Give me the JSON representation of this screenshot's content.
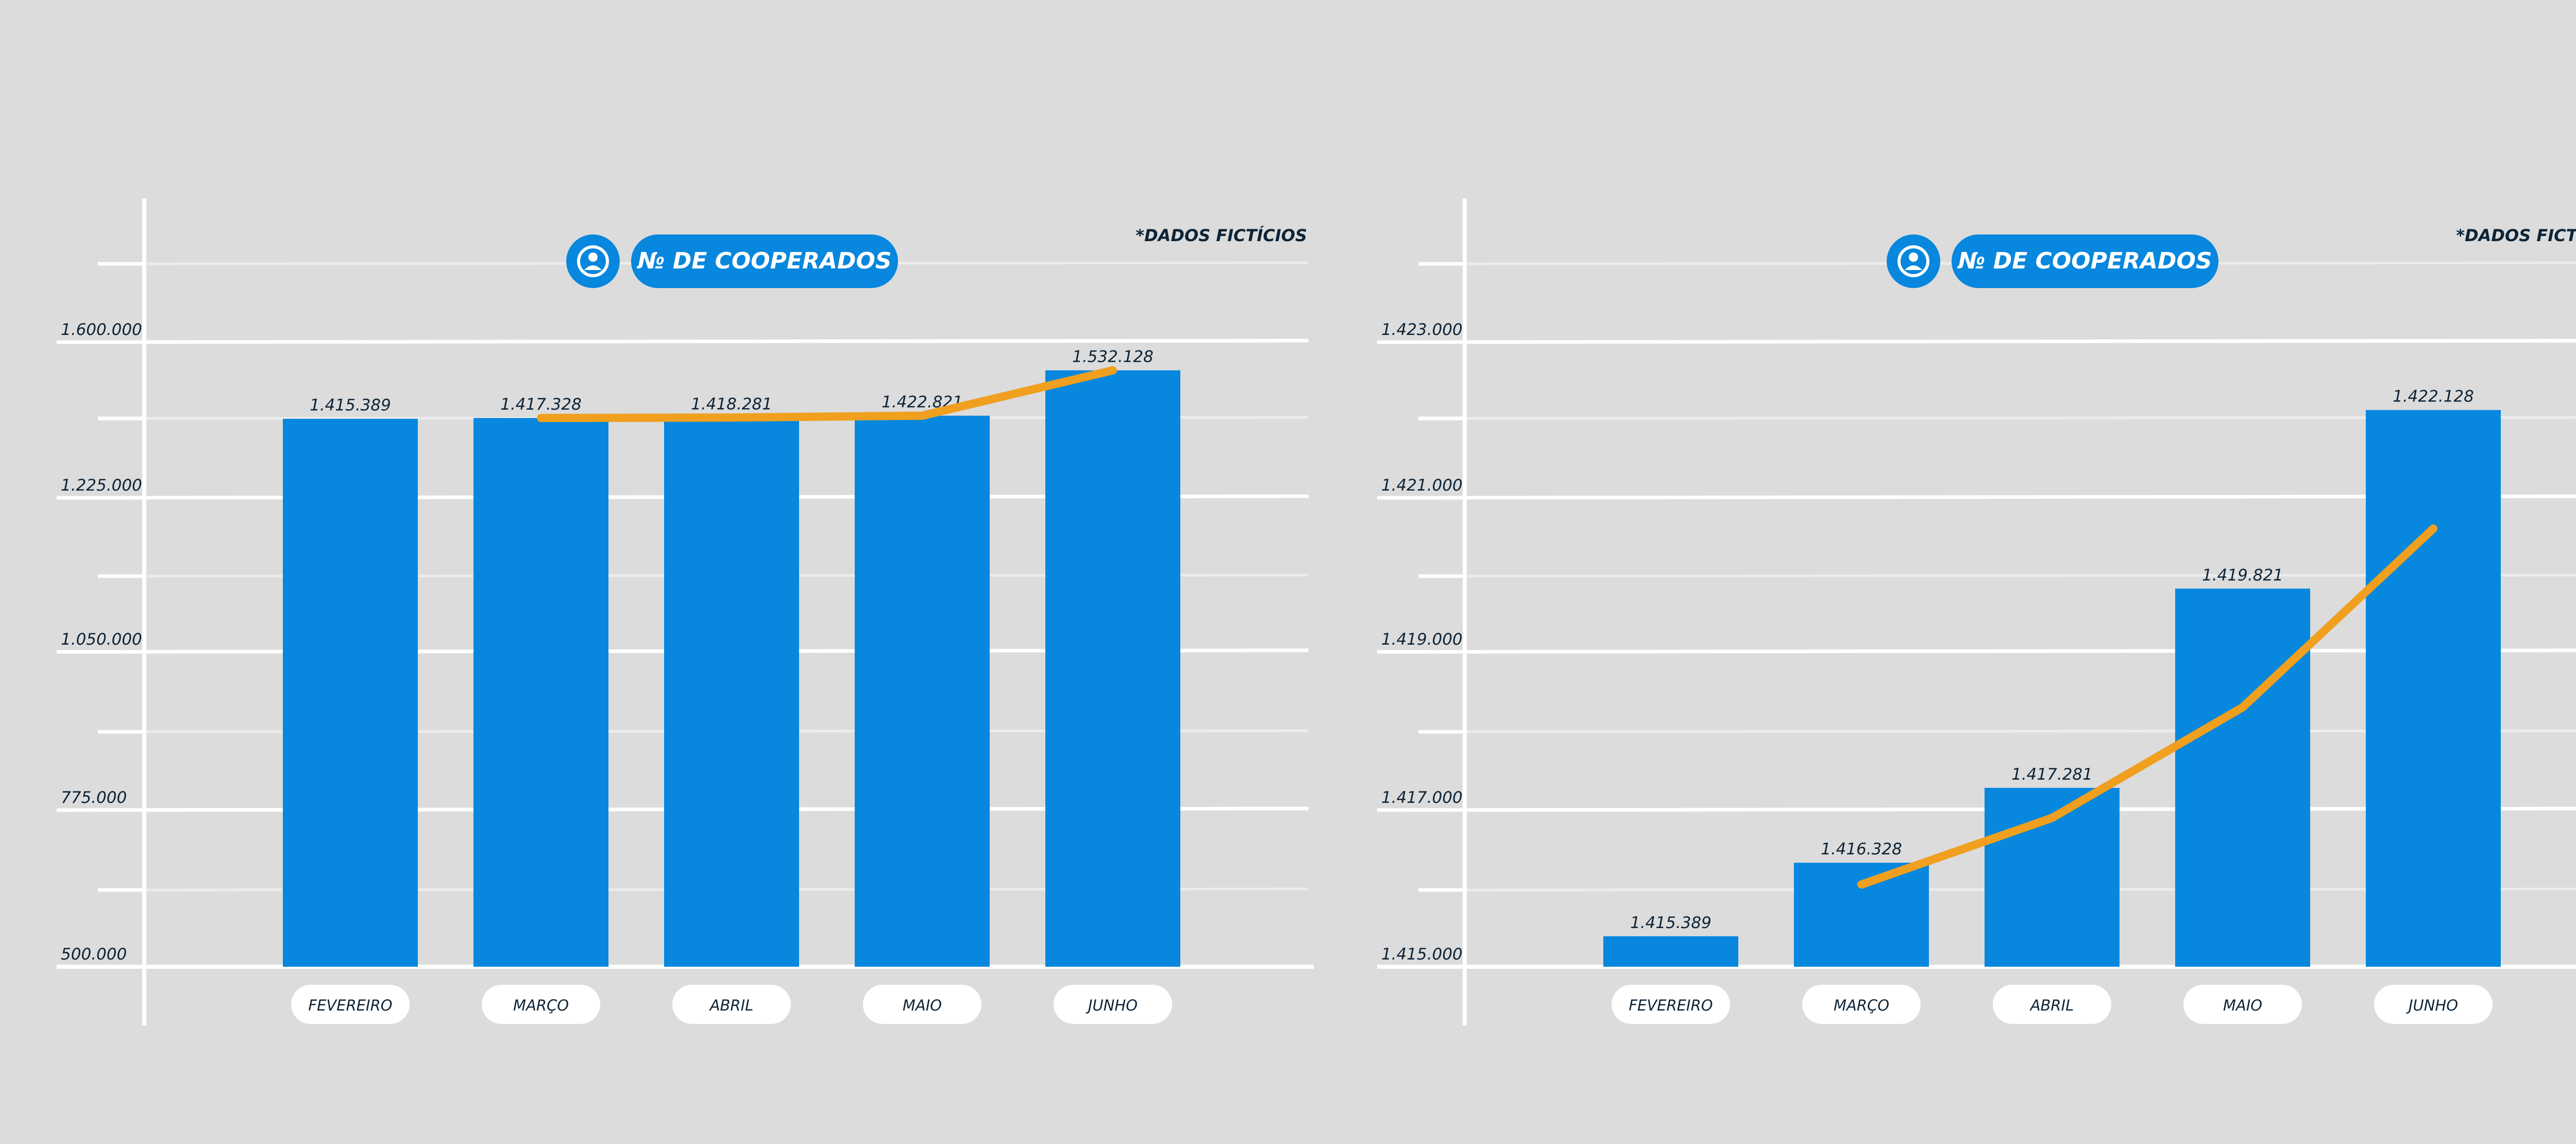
{
  "colors": {
    "background": "#dcdcdc",
    "bar": "#0787dd",
    "line": "#f09f1e",
    "text": "#0d2437",
    "gridline": "#ffffff",
    "pill": "#ffffff"
  },
  "icon": "user-circle-icon",
  "chart_data": [
    {
      "type": "bar",
      "title": "№ DE COOPERADOS",
      "note": "*DADOS FICTÍCIOS",
      "categories": [
        "FEVEREIRO",
        "MARÇO",
        "ABRIL",
        "MAIO",
        "JUNHO"
      ],
      "values": [
        1415389,
        1417328,
        1418281,
        1422821,
        1532128
      ],
      "value_labels": [
        "1.415.389",
        "1.417.328",
        "1.418.281",
        "1.422.821",
        "1.532.128"
      ],
      "y_ticks": [
        500000,
        775000,
        1050000,
        1225000,
        1600000
      ],
      "y_tick_labels": [
        "500.000",
        "775.000",
        "1.050.000",
        "1.225.000",
        "1.600.000"
      ],
      "trend_line": {
        "x": [
          "MARÇO",
          "ABRIL",
          "MAIO",
          "JUNHO"
        ],
        "values": [
          1417328,
          1418281,
          1422821,
          1532128
        ]
      },
      "grid": true,
      "legend": "none"
    },
    {
      "type": "bar",
      "title": "№ DE COOPERADOS",
      "note": "*DADOS FICTÍCIOS",
      "categories": [
        "FEVEREIRO",
        "MARÇO",
        "ABRIL",
        "MAIO",
        "JUNHO"
      ],
      "values": [
        1415389,
        1416328,
        1417281,
        1419821,
        1422128
      ],
      "value_labels": [
        "1.415.389",
        "1.416.328",
        "1.417.281",
        "1.419.821",
        "1.422.128"
      ],
      "y_ticks": [
        1415000,
        1417000,
        1419000,
        1421000,
        1423000
      ],
      "y_tick_labels": [
        "1.415.000",
        "1.417.000",
        "1.419.000",
        "1.421.000",
        "1.423.000"
      ],
      "trend_line": {
        "x": [
          "MARÇO",
          "ABRIL",
          "MAIO",
          "JUNHO"
        ],
        "values": [
          1416050,
          1416900,
          1418300,
          1420600
        ]
      },
      "grid": true,
      "legend": "none"
    }
  ]
}
